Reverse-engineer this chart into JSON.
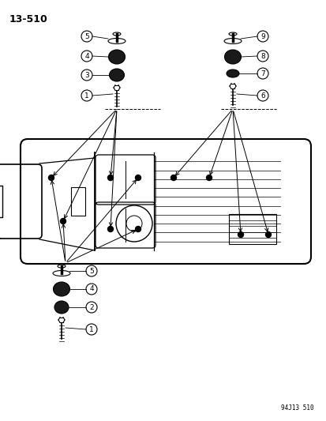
{
  "page_number": "13-510",
  "footer": "94J13 510",
  "background_color": "#ffffff",
  "line_color": "#000000",
  "fig_width": 4.14,
  "fig_height": 5.33,
  "dpi": 100
}
